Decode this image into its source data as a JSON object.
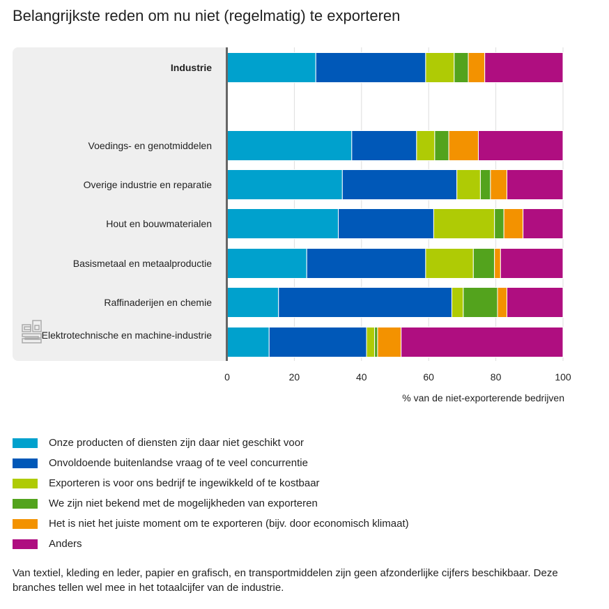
{
  "header": {
    "title": "Belangrijkste reden om nu niet (regelmatig) te exporteren"
  },
  "footnote": "Van textiel, kleding en leder, papier en grafisch, en transportmiddelen zijn geen afzonderlijke cijfers beschikbaar. Deze branches tellen wel mee in het totaalcijfer van de industrie.",
  "logo": "cbs-logo-icon",
  "chart_data": {
    "type": "bar",
    "orientation": "horizontal",
    "stacked": true,
    "title": "Belangrijkste reden om nu niet (regelmatig) te exporteren",
    "xlabel": "% van de niet-exporterende bedrijven",
    "ylabel": "",
    "xlim": [
      0,
      100
    ],
    "xticks": [
      "0",
      "20",
      "40",
      "60",
      "80",
      "100"
    ],
    "grid": true,
    "legend_position": "bottom",
    "categories": [
      {
        "label": "Industrie",
        "bold": true
      },
      {
        "label": "Voedings- en genotmiddelen",
        "bold": false
      },
      {
        "label": "Overige industrie en reparatie",
        "bold": false
      },
      {
        "label": "Hout en bouwmaterialen",
        "bold": false
      },
      {
        "label": "Basismetaal en metaalproductie",
        "bold": false
      },
      {
        "label": "Raffinaderijen en chemie",
        "bold": false
      },
      {
        "label": "Elektrotechnische en machine-industrie",
        "bold": false
      }
    ],
    "series": [
      {
        "name": "Onze producten of diensten zijn daar niet geschikt voor",
        "color": "#00a1cd",
        "values": [
          26.4,
          37.1,
          34.3,
          33.1,
          23.7,
          15.3,
          12.5
        ]
      },
      {
        "name": "Onvoldoende buitenlandse vraag of te veel concurrentie",
        "color": "#0058b8",
        "values": [
          32.7,
          19.3,
          34.1,
          28.4,
          35.4,
          51.6,
          29.0
        ]
      },
      {
        "name": "Exporteren is voor ons bedrijf te ingewikkeld of te kostbaar",
        "color": "#afcb05",
        "values": [
          8.5,
          5.4,
          7.0,
          18.1,
          14.2,
          3.4,
          2.4
        ]
      },
      {
        "name": "We zijn niet bekend met de mogelijkheden van exporteren",
        "color": "#53a31d",
        "values": [
          4.2,
          4.2,
          3.0,
          2.8,
          6.3,
          10.2,
          0.9
        ]
      },
      {
        "name": "Het is niet het juiste moment om te exporteren (bijv. door economisch klimaat)",
        "color": "#f39200",
        "values": [
          4.9,
          8.8,
          4.9,
          5.7,
          1.8,
          2.8,
          7.0
        ]
      },
      {
        "name": "Anders",
        "color": "#af0e80",
        "values": [
          23.3,
          25.2,
          16.7,
          11.9,
          18.6,
          16.7,
          48.2
        ]
      }
    ]
  }
}
